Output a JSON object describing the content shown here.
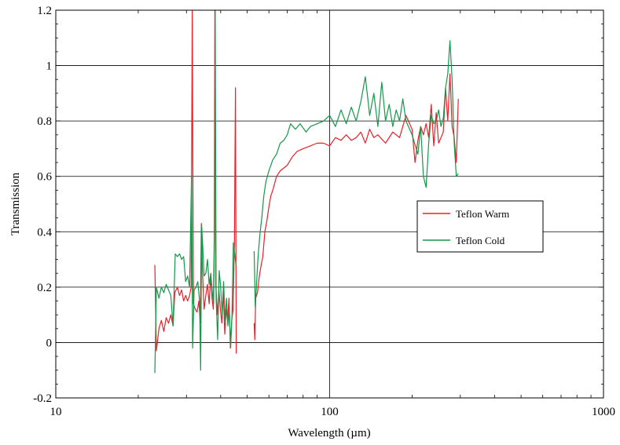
{
  "chart_data": {
    "type": "line",
    "xlabel": "Wavelength (µm)",
    "ylabel": "Transmission",
    "xscale": "log",
    "xlim": [
      10,
      1000
    ],
    "ylim": [
      -0.2,
      1.2
    ],
    "x_ticks": [
      10,
      100,
      1000
    ],
    "x_tick_labels": [
      "10",
      "100",
      "1000"
    ],
    "y_ticks": [
      -0.2,
      0,
      0.2,
      0.4,
      0.6,
      0.8,
      1,
      1.2
    ],
    "y_tick_labels": [
      "-0.2",
      "0",
      "0.2",
      "0.4",
      "0.6",
      "0.8",
      "1",
      "1.2"
    ],
    "grid": true,
    "legend_position": "right",
    "series": [
      {
        "name": "Teflon Warm",
        "color": "#e8202a",
        "segments": [
          [
            [
              23,
              0.28
            ],
            [
              23.3,
              -0.03
            ],
            [
              23.8,
              0.05
            ],
            [
              24.3,
              0.08
            ],
            [
              24.8,
              0.04
            ],
            [
              25.3,
              0.09
            ],
            [
              25.8,
              0.07
            ],
            [
              26.3,
              0.1
            ],
            [
              26.8,
              0.06
            ],
            [
              27.2,
              0.18
            ],
            [
              27.8,
              0.2
            ],
            [
              28.3,
              0.17
            ],
            [
              28.8,
              0.19
            ],
            [
              29.3,
              0.15
            ],
            [
              29.8,
              0.17
            ],
            [
              30.3,
              0.15
            ],
            [
              30.8,
              0.17
            ],
            [
              31.2,
              0.2
            ],
            [
              31.5,
              1.2
            ],
            [
              31.8,
              0.14
            ],
            [
              32.3,
              0.12
            ],
            [
              32.8,
              0.11
            ],
            [
              33.3,
              0.15
            ],
            [
              33.7,
              0.07
            ],
            [
              34,
              0.43
            ],
            [
              34.3,
              0.26
            ],
            [
              34.8,
              0.12
            ],
            [
              35.3,
              0.17
            ],
            [
              35.8,
              0.21
            ],
            [
              36.3,
              0.14
            ],
            [
              36.8,
              0.24
            ],
            [
              37.2,
              0.16
            ],
            [
              37.6,
              0.12
            ],
            [
              37.9,
              0.38
            ],
            [
              38.1,
              1.2
            ],
            [
              38.4,
              0.21
            ],
            [
              38.9,
              0.1
            ],
            [
              39.4,
              0.19
            ],
            [
              39.9,
              0.12
            ],
            [
              40.4,
              0.07
            ],
            [
              40.9,
              0.19
            ],
            [
              41.4,
              0.03
            ],
            [
              41.9,
              0.12
            ],
            [
              42.4,
              0.08
            ],
            [
              42.9,
              0.16
            ],
            [
              43.4,
              -0.02
            ],
            [
              43.9,
              0.08
            ],
            [
              44.4,
              0.12
            ],
            [
              44.9,
              0.36
            ],
            [
              45.3,
              0.92
            ],
            [
              45.6,
              -0.04
            ]
          ],
          [
            [
              53,
              0.07
            ],
            [
              53.3,
              0.01
            ],
            [
              53.7,
              0.16
            ],
            [
              54.5,
              0.18
            ],
            [
              55.2,
              0.23
            ],
            [
              56,
              0.27
            ],
            [
              57,
              0.31
            ],
            [
              58,
              0.4
            ],
            [
              59,
              0.44
            ],
            [
              60,
              0.49
            ],
            [
              61,
              0.53
            ],
            [
              62,
              0.55
            ],
            [
              64,
              0.6
            ],
            [
              66,
              0.62
            ],
            [
              68,
              0.63
            ],
            [
              70,
              0.64
            ],
            [
              73,
              0.67
            ],
            [
              76,
              0.69
            ],
            [
              80,
              0.7
            ],
            [
              85,
              0.71
            ],
            [
              90,
              0.72
            ],
            [
              95,
              0.72
            ],
            [
              100,
              0.71
            ],
            [
              105,
              0.74
            ],
            [
              110,
              0.73
            ],
            [
              115,
              0.75
            ],
            [
              120,
              0.73
            ],
            [
              125,
              0.74
            ],
            [
              130,
              0.76
            ],
            [
              135,
              0.72
            ],
            [
              140,
              0.77
            ],
            [
              145,
              0.74
            ],
            [
              150,
              0.75
            ],
            [
              160,
              0.72
            ],
            [
              170,
              0.76
            ],
            [
              180,
              0.74
            ],
            [
              190,
              0.82
            ],
            [
              200,
              0.77
            ],
            [
              205,
              0.65
            ],
            [
              210,
              0.73
            ],
            [
              215,
              0.78
            ],
            [
              220,
              0.75
            ],
            [
              225,
              0.79
            ],
            [
              230,
              0.74
            ],
            [
              235,
              0.86
            ],
            [
              240,
              0.71
            ],
            [
              245,
              0.83
            ],
            [
              250,
              0.72
            ],
            [
              255,
              0.74
            ],
            [
              260,
              0.76
            ],
            [
              265,
              0.92
            ],
            [
              270,
              0.8
            ],
            [
              275,
              0.97
            ],
            [
              280,
              0.78
            ],
            [
              285,
              0.74
            ],
            [
              290,
              0.65
            ],
            [
              295,
              0.88
            ]
          ]
        ]
      },
      {
        "name": "Teflon Cold",
        "color": "#13994a",
        "segments": [
          [
            [
              23,
              -0.11
            ],
            [
              23.3,
              0.2
            ],
            [
              23.8,
              0.16
            ],
            [
              24.3,
              0.2
            ],
            [
              24.8,
              0.18
            ],
            [
              25.3,
              0.21
            ],
            [
              25.8,
              0.19
            ],
            [
              26.3,
              0.17
            ],
            [
              26.8,
              0.06
            ],
            [
              27.3,
              0.32
            ],
            [
              27.8,
              0.31
            ],
            [
              28.3,
              0.32
            ],
            [
              28.8,
              0.3
            ],
            [
              29.3,
              0.31
            ],
            [
              29.8,
              0.22
            ],
            [
              30.3,
              0.24
            ],
            [
              30.8,
              0.2
            ],
            [
              31.3,
              0.6
            ],
            [
              31.6,
              -0.02
            ],
            [
              32,
              0.19
            ],
            [
              32.5,
              0.2
            ],
            [
              33,
              0.22
            ],
            [
              33.5,
              0.15
            ],
            [
              33.8,
              -0.1
            ],
            [
              34.1,
              0.42
            ],
            [
              34.4,
              0.35
            ],
            [
              34.8,
              0.24
            ],
            [
              35.3,
              0.25
            ],
            [
              35.8,
              0.3
            ],
            [
              36.3,
              0.21
            ],
            [
              36.8,
              0.25
            ],
            [
              37.3,
              0.18
            ],
            [
              37.7,
              0.14
            ],
            [
              38,
              0.4
            ],
            [
              38.2,
              1.2
            ],
            [
              38.5,
              0.16
            ],
            [
              39,
              0.01
            ],
            [
              39.5,
              0.26
            ],
            [
              40,
              0.2
            ],
            [
              40.5,
              0.1
            ],
            [
              41,
              0.22
            ],
            [
              41.5,
              0.08
            ],
            [
              42,
              0.16
            ],
            [
              42.5,
              0.06
            ],
            [
              43,
              0.12
            ],
            [
              43.5,
              -0.02
            ],
            [
              44,
              0.1
            ],
            [
              44.5,
              0.36
            ],
            [
              45,
              0.32
            ],
            [
              45.5,
              0.28
            ]
          ],
          [
            [
              53,
              0.33
            ],
            [
              53.5,
              0.13
            ],
            [
              54,
              0.2
            ],
            [
              54.7,
              0.3
            ],
            [
              55.5,
              0.38
            ],
            [
              56.5,
              0.45
            ],
            [
              57.5,
              0.53
            ],
            [
              58.5,
              0.58
            ],
            [
              60,
              0.62
            ],
            [
              62,
              0.66
            ],
            [
              64,
              0.68
            ],
            [
              66,
              0.72
            ],
            [
              68,
              0.73
            ],
            [
              70,
              0.75
            ],
            [
              72,
              0.79
            ],
            [
              75,
              0.77
            ],
            [
              78,
              0.79
            ],
            [
              82,
              0.76
            ],
            [
              85,
              0.78
            ],
            [
              90,
              0.79
            ],
            [
              95,
              0.8
            ],
            [
              100,
              0.82
            ],
            [
              105,
              0.78
            ],
            [
              110,
              0.84
            ],
            [
              115,
              0.79
            ],
            [
              120,
              0.85
            ],
            [
              125,
              0.8
            ],
            [
              130,
              0.87
            ],
            [
              135,
              0.96
            ],
            [
              140,
              0.82
            ],
            [
              145,
              0.9
            ],
            [
              150,
              0.78
            ],
            [
              155,
              0.94
            ],
            [
              160,
              0.8
            ],
            [
              165,
              0.86
            ],
            [
              170,
              0.78
            ],
            [
              175,
              0.84
            ],
            [
              180,
              0.8
            ],
            [
              185,
              0.88
            ],
            [
              190,
              0.8
            ],
            [
              200,
              0.75
            ],
            [
              210,
              0.68
            ],
            [
              215,
              0.78
            ],
            [
              220,
              0.6
            ],
            [
              225,
              0.56
            ],
            [
              230,
              0.72
            ],
            [
              235,
              0.82
            ],
            [
              240,
              0.79
            ],
            [
              245,
              0.8
            ],
            [
              250,
              0.84
            ],
            [
              255,
              0.78
            ],
            [
              260,
              0.81
            ],
            [
              265,
              0.92
            ],
            [
              270,
              0.97
            ],
            [
              275,
              1.09
            ],
            [
              280,
              0.95
            ],
            [
              285,
              0.72
            ],
            [
              290,
              0.6
            ],
            [
              295,
              0.61
            ]
          ]
        ]
      }
    ]
  }
}
